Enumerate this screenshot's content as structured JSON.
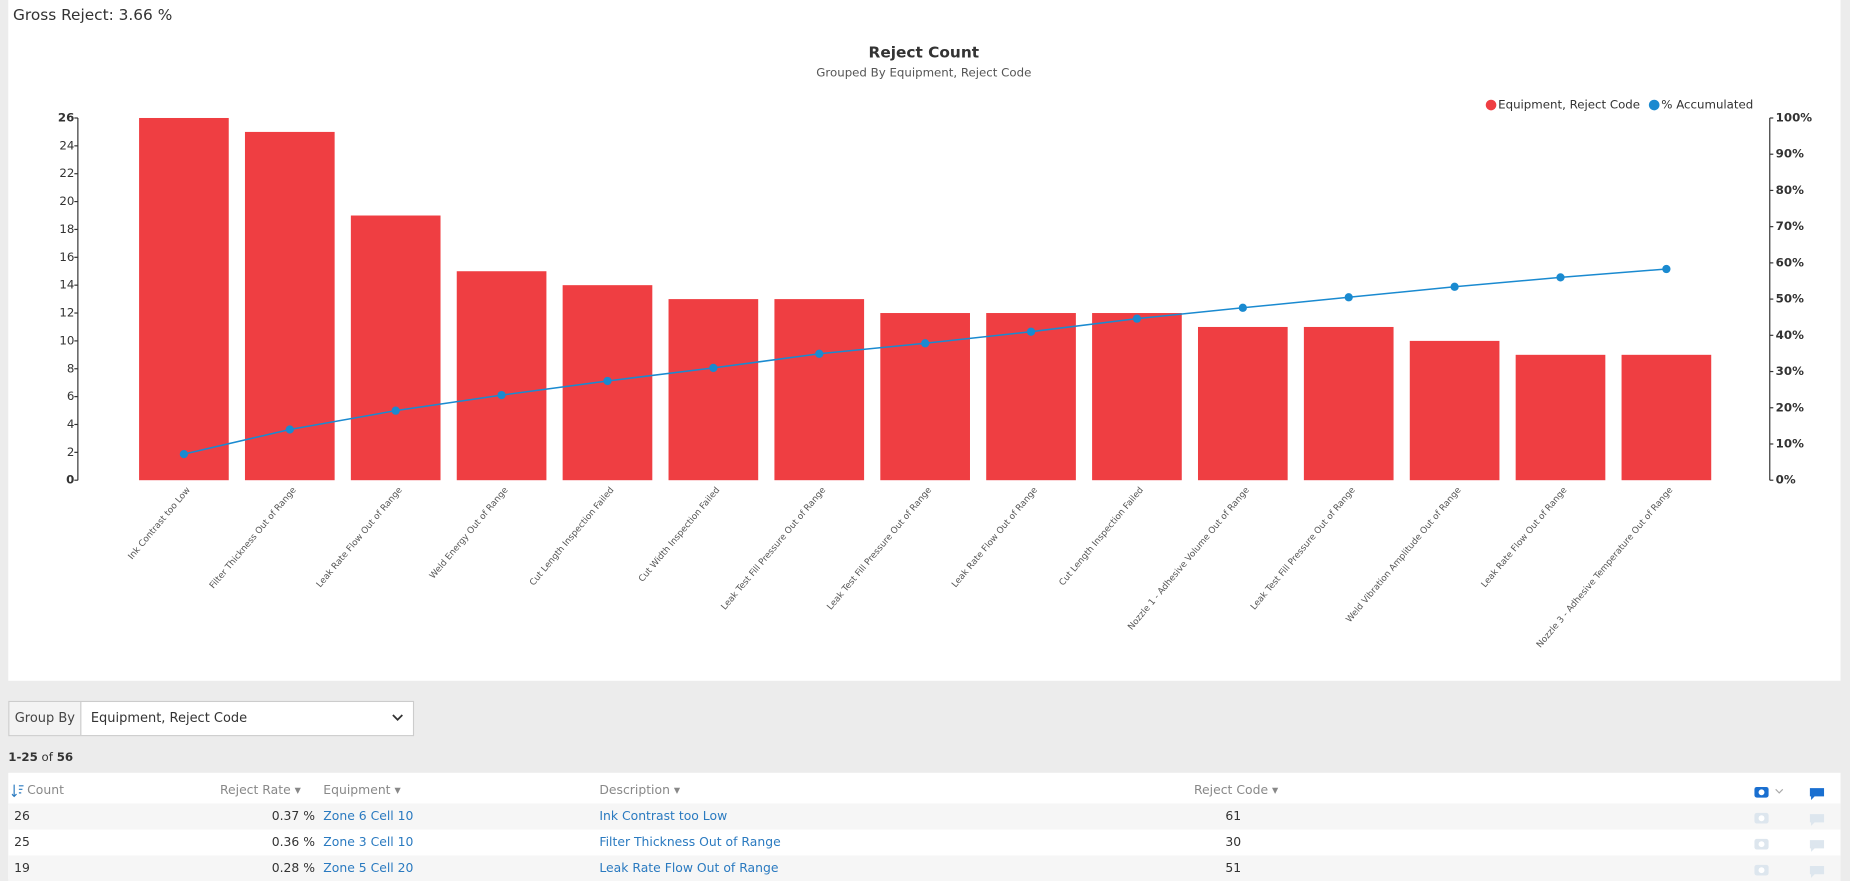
{
  "header": {
    "gross_reject": "Gross Reject: 3.66 %"
  },
  "chart_data": {
    "type": "bar",
    "title": "Reject Count",
    "subtitle": "Grouped By Equipment, Reject Code",
    "categories": [
      "Ink Contrast too Low",
      "Filter Thickness Out of Range",
      "Leak Rate Flow Out of Range",
      "Weld Energy Out of Range",
      "Cut Length Inspection Failed",
      "Cut Width Inspection Failed",
      "Leak Test Fill Pressure Out of Range",
      "Leak Test Fill Pressure Out of Range",
      "Leak Rate Flow Out of Range",
      "Cut Length Inspection Failed",
      "Nozzle 1 - Adhesive Volume Out of Range",
      "Leak Test Fill Pressure Out of Range",
      "Weld Vibration Amplitude Out of Range",
      "Leak Rate Flow Out of Range",
      "Nozzle 3 - Adhesive Temperature Out of Range"
    ],
    "series": [
      {
        "name": "Equipment, Reject Code",
        "color": "#ef3e42",
        "values": [
          26,
          25,
          19,
          15,
          14,
          13,
          13,
          12,
          12,
          12,
          11,
          11,
          10,
          9,
          9
        ]
      },
      {
        "name": "% Accumulated",
        "type": "line",
        "axis": "y2",
        "color": "#1a8ad0",
        "values": [
          7.2,
          14,
          19.2,
          23.5,
          27.4,
          31,
          34.9,
          37.8,
          41,
          44.6,
          47.6,
          50.5,
          53.4,
          56,
          58.3
        ]
      }
    ],
    "ylim": [
      0,
      26
    ],
    "yticks": [
      0,
      2,
      4,
      6,
      8,
      10,
      12,
      14,
      16,
      18,
      20,
      22,
      24,
      26
    ],
    "y2lim": [
      0,
      100
    ],
    "y2ticks": [
      {
        "value": 0,
        "label": "0%"
      },
      {
        "value": 10,
        "label": "10%"
      },
      {
        "value": 20,
        "label": "20%"
      },
      {
        "value": 30,
        "label": "30%"
      },
      {
        "value": 40,
        "label": "40%"
      },
      {
        "value": 50,
        "label": "50%"
      },
      {
        "value": 60,
        "label": "60%"
      },
      {
        "value": 70,
        "label": "70%"
      },
      {
        "value": 80,
        "label": "80%"
      },
      {
        "value": 90,
        "label": "90%"
      },
      {
        "value": 100,
        "label": "100%"
      }
    ],
    "legend": "top-right",
    "grid": false
  },
  "controls": {
    "group_by_label": "Group By",
    "group_by_value": "Equipment, Reject Code"
  },
  "pagination": {
    "range": "1-25",
    "of": "of",
    "total": "56"
  },
  "table": {
    "columns": [
      "Count",
      "Reject Rate",
      "Equipment",
      "Description",
      "Reject Code"
    ],
    "rows": [
      [
        "26",
        "0.37 %",
        "Zone 6 Cell 10",
        "Ink Contrast too Low",
        "61"
      ],
      [
        "25",
        "0.36 %",
        "Zone 3 Cell 10",
        "Filter Thickness Out of Range",
        "30"
      ],
      [
        "19",
        "0.28 %",
        "Zone 5 Cell 20",
        "Leak Rate Flow Out of Range",
        "51"
      ]
    ]
  }
}
